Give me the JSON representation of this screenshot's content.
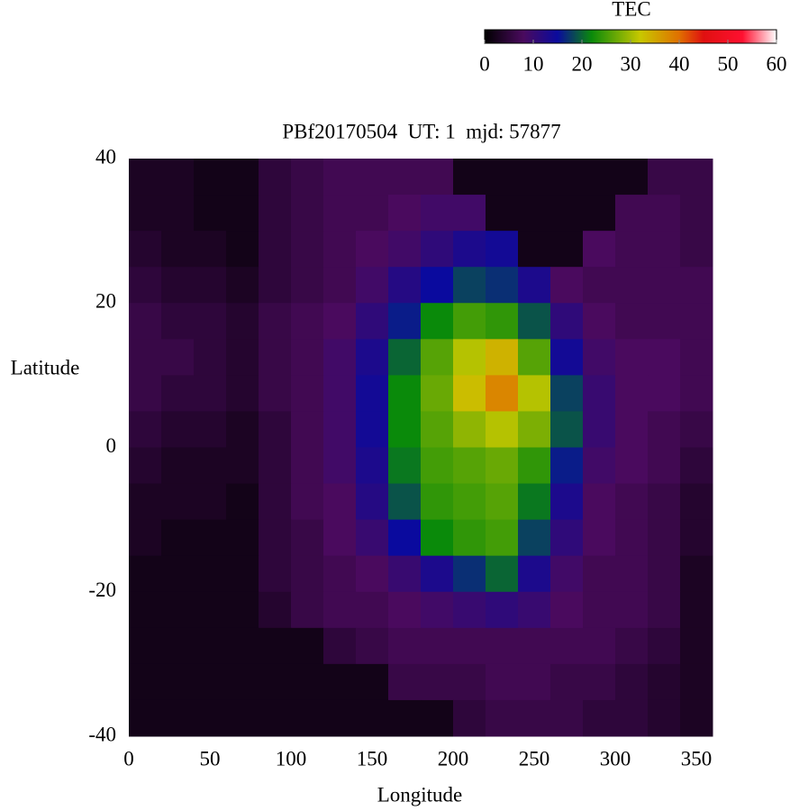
{
  "chart_data": {
    "type": "heatmap",
    "title": "PBf20170504  UT: 1  mjd: 57877",
    "xlabel": "Longitude",
    "ylabel": "Latitude",
    "colorbar_label": "TEC",
    "x": [
      10,
      30,
      50,
      70,
      90,
      110,
      130,
      150,
      170,
      190,
      210,
      230,
      250,
      270,
      290,
      310,
      330,
      350
    ],
    "y": [
      37.5,
      32.5,
      27.5,
      22.5,
      17.5,
      12.5,
      7.5,
      2.5,
      -2.5,
      -7.5,
      -12.5,
      -17.5,
      -22.5,
      -27.5,
      -32.5,
      -37.5
    ],
    "z": [
      [
        3,
        3,
        2,
        2,
        5,
        6,
        7,
        7,
        7,
        7,
        2,
        2,
        2,
        2,
        2,
        2,
        6,
        6
      ],
      [
        3,
        3,
        2,
        2,
        5,
        6,
        7,
        7,
        8,
        9,
        9,
        2,
        2,
        2,
        2,
        7,
        7,
        6
      ],
      [
        4,
        3,
        3,
        2,
        5,
        6,
        7,
        8,
        9,
        11,
        13,
        14,
        2,
        2,
        8,
        7,
        7,
        6
      ],
      [
        5,
        4,
        4,
        3,
        5,
        6,
        7,
        9,
        12,
        15,
        18,
        17,
        13,
        8,
        7,
        7,
        7,
        7
      ],
      [
        6,
        5,
        5,
        4,
        6,
        7,
        8,
        11,
        16,
        22,
        25,
        24,
        19,
        11,
        8,
        7,
        7,
        7
      ],
      [
        6,
        6,
        5,
        4,
        6,
        7,
        9,
        13,
        20,
        26,
        31,
        34,
        26,
        14,
        9,
        8,
        8,
        7
      ],
      [
        6,
        5,
        5,
        4,
        6,
        7,
        9,
        14,
        22,
        27,
        33,
        38,
        31,
        18,
        10,
        8,
        8,
        7
      ],
      [
        5,
        4,
        4,
        3,
        5,
        7,
        9,
        14,
        22,
        26,
        29,
        31,
        28,
        19,
        10,
        8,
        7,
        6
      ],
      [
        4,
        3,
        3,
        3,
        5,
        7,
        9,
        13,
        21,
        25,
        26,
        27,
        24,
        16,
        9,
        8,
        7,
        5
      ],
      [
        3,
        3,
        3,
        2,
        5,
        7,
        8,
        12,
        19,
        24,
        25,
        26,
        21,
        13,
        8,
        7,
        6,
        4
      ],
      [
        3,
        2,
        2,
        2,
        5,
        6,
        8,
        10,
        15,
        22,
        24,
        25,
        18,
        11,
        8,
        7,
        6,
        4
      ],
      [
        2,
        2,
        2,
        2,
        5,
        6,
        7,
        8,
        10,
        13,
        17,
        20,
        13,
        9,
        7,
        7,
        6,
        3
      ],
      [
        2,
        2,
        2,
        2,
        4,
        6,
        7,
        7,
        8,
        9,
        10,
        11,
        10,
        8,
        7,
        7,
        6,
        3
      ],
      [
        2,
        2,
        2,
        2,
        2,
        2,
        5,
        6,
        7,
        7,
        7,
        7,
        7,
        7,
        7,
        6,
        5,
        3
      ],
      [
        2,
        2,
        2,
        2,
        2,
        2,
        2,
        2,
        6,
        6,
        6,
        7,
        7,
        6,
        6,
        5,
        4,
        3
      ],
      [
        2,
        2,
        2,
        2,
        2,
        2,
        2,
        2,
        2,
        2,
        5,
        6,
        6,
        6,
        5,
        5,
        4,
        3
      ]
    ],
    "xlim": [
      0,
      360
    ],
    "ylim": [
      -40,
      40
    ],
    "xticks": [
      0,
      50,
      100,
      150,
      200,
      250,
      300,
      350
    ],
    "yticks": [
      -40,
      -20,
      0,
      20,
      40
    ],
    "zlim": [
      0,
      60
    ],
    "zticks": [
      0,
      10,
      20,
      30,
      40,
      50,
      60
    ],
    "colorscale": [
      [
        0,
        "#000000"
      ],
      [
        8,
        "#4a0a5e"
      ],
      [
        15,
        "#0a0a9e"
      ],
      [
        22,
        "#0a8a0a"
      ],
      [
        32,
        "#c8c800"
      ],
      [
        40,
        "#e07000"
      ],
      [
        45,
        "#e01010"
      ],
      [
        53,
        "#ff1030"
      ],
      [
        60,
        "#ffffff"
      ]
    ]
  }
}
